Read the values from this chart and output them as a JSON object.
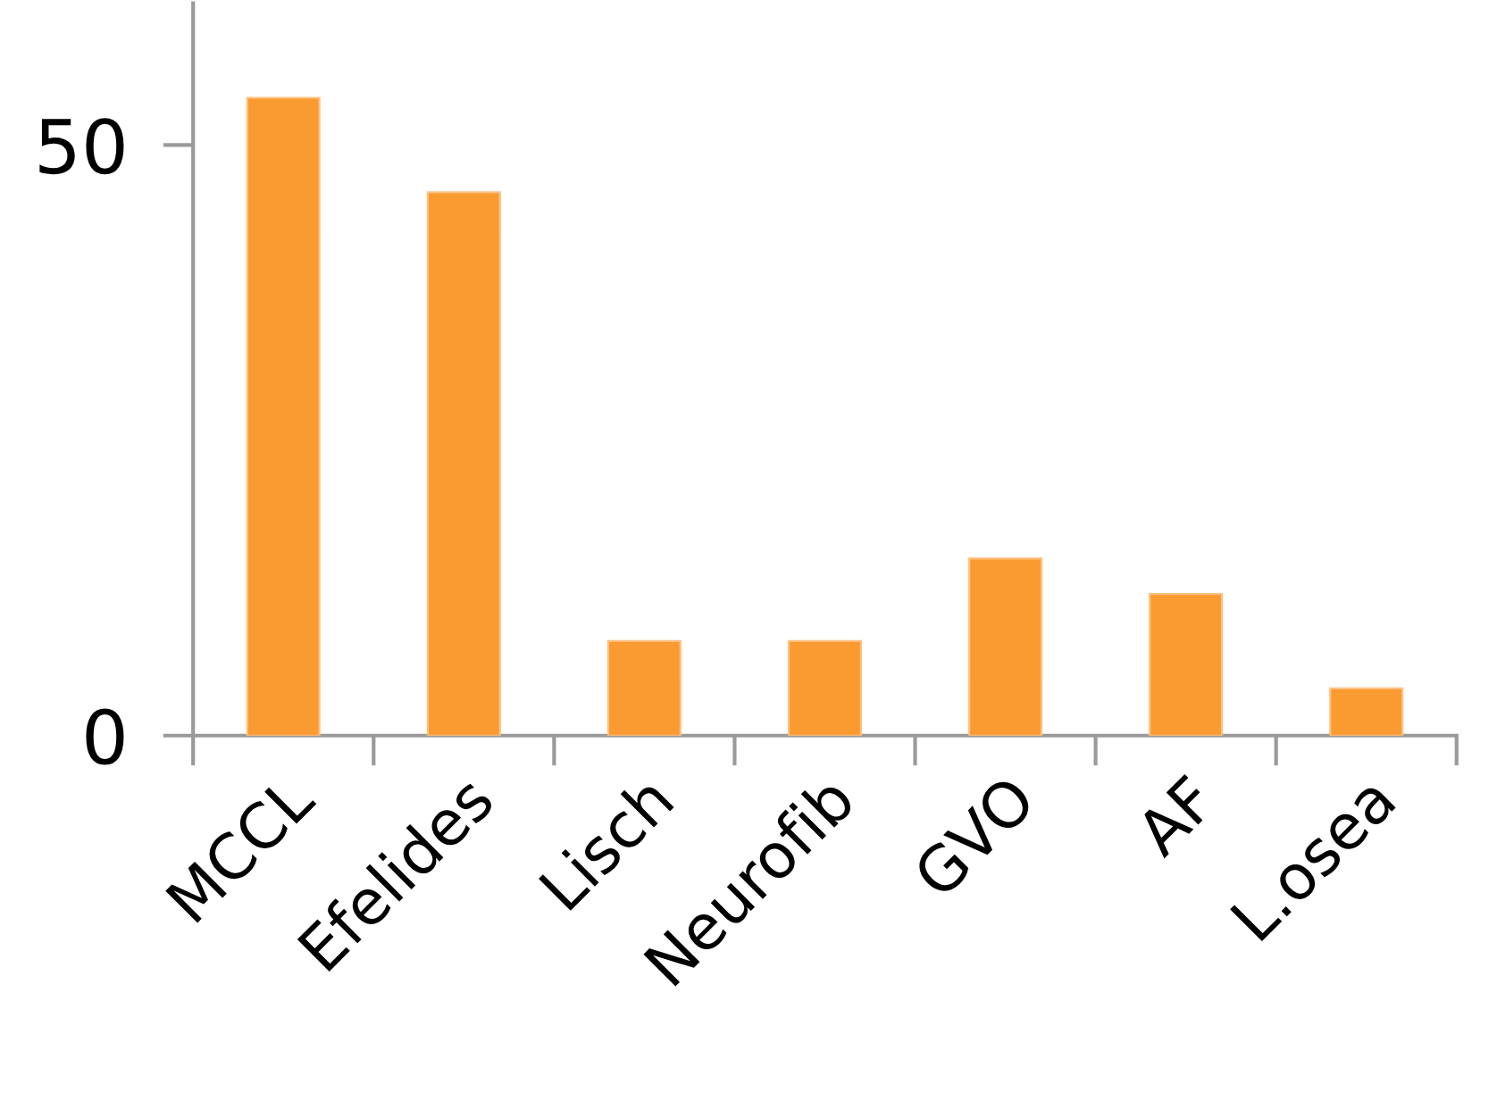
{
  "chart_data": {
    "type": "bar",
    "categories": [
      "MCCL",
      "Efelides",
      "Lisch",
      "Neurofib",
      "GVO",
      "AF",
      "L.osea"
    ],
    "values": [
      54,
      46,
      8,
      8,
      15,
      12,
      4
    ],
    "color": "#f99b30",
    "ylim": [
      0,
      62
    ],
    "yticks": [
      0,
      50
    ]
  }
}
